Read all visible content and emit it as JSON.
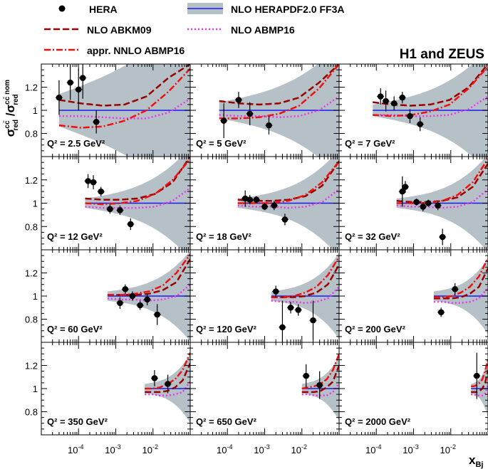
{
  "chart_data": {
    "type": "scatter",
    "collaboration": "H1 and ZEUS",
    "ylabel": "σ_red^cc̄ / σ_red^cc̄ nom",
    "xlabel": "x_Bj",
    "xscale": "log",
    "xlim": [
      1e-05,
      0.1
    ],
    "ylim": [
      0.6,
      1.4
    ],
    "yticks": [
      0.8,
      1.0,
      1.2
    ],
    "ytick_labels": [
      "0.8",
      "1",
      "1.2"
    ],
    "xticks": [
      0.0001,
      0.001,
      0.01
    ],
    "xtick_labels": [
      [
        "10",
        "-4"
      ],
      [
        "10",
        "-3"
      ],
      [
        "10",
        "-2"
      ]
    ],
    "legend": [
      {
        "key": "hera",
        "label": "HERA"
      },
      {
        "key": "herapdf",
        "label": "NLO HERAPDF2.0 FF3A"
      },
      {
        "key": "abkm09",
        "label": "NLO ABKM09"
      },
      {
        "key": "abmp16",
        "label": "NLO ABMP16"
      },
      {
        "key": "nnlo",
        "label": "appr. NNLO ABMP16"
      }
    ],
    "colors": {
      "hera": "#000000",
      "band": "#b6c1c7",
      "herapdf": "#1a1aee",
      "abkm09": "#990000",
      "abmp16": "#ee33ee",
      "nnlo": "#ee1111"
    },
    "panels": [
      {
        "q2_label": "Q² = 2.5 GeV²",
        "q2": "2.5",
        "xmin": 3e-05,
        "band": [
          0.14,
          0.42,
          0.28
        ],
        "abkm09": [
          1.09,
          1.06,
          1.04,
          1.05,
          1.12,
          1.28,
          1.4
        ],
        "abmp16": [
          0.95,
          0.95,
          0.94,
          0.93,
          0.93,
          0.98,
          1.1
        ],
        "nnlo": [
          0.87,
          0.85,
          0.86,
          0.91,
          1.0,
          1.16,
          1.36
        ],
        "points": [
          {
            "x": 3e-05,
            "y": 1.11,
            "e": 0.15
          },
          {
            "x": 6e-05,
            "y": 1.24,
            "e": 0.15
          },
          {
            "x": 0.0001,
            "y": 1.18,
            "e": 0.18
          },
          {
            "x": 0.00013,
            "y": 1.28,
            "e": 0.18
          },
          {
            "x": 0.0003,
            "y": 0.9,
            "e": 0.1
          }
        ]
      },
      {
        "q2_label": "Q² = 5 GeV²",
        "q2": "5",
        "xmin": 6e-05,
        "band": [
          0.07,
          0.2,
          0.3
        ],
        "abkm09": [
          1.08,
          1.06,
          1.05,
          1.06,
          1.11,
          1.24,
          1.4
        ],
        "abmp16": [
          0.96,
          0.95,
          0.95,
          0.94,
          0.95,
          1.0,
          1.12
        ],
        "nnlo": [
          0.93,
          0.93,
          0.94,
          0.97,
          1.04,
          1.19,
          1.4
        ],
        "points": [
          {
            "x": 8e-05,
            "y": 0.91,
            "e": 0.15
          },
          {
            "x": 0.0002,
            "y": 1.09,
            "e": 0.07
          },
          {
            "x": 0.0004,
            "y": 0.97,
            "e": 0.1
          },
          {
            "x": 0.0013,
            "y": 0.87,
            "e": 0.08
          }
        ]
      },
      {
        "q2_label": "Q² = 7 GeV²",
        "q2": "7",
        "xmin": 8e-05,
        "band": [
          0.05,
          0.18,
          0.3
        ],
        "abkm09": [
          1.07,
          1.05,
          1.04,
          1.05,
          1.09,
          1.2,
          1.4
        ],
        "abmp16": [
          0.96,
          0.96,
          0.95,
          0.95,
          0.96,
          1.01,
          1.12
        ],
        "nnlo": [
          0.96,
          0.95,
          0.96,
          0.99,
          1.05,
          1.19,
          1.38
        ],
        "points": [
          {
            "x": 0.00013,
            "y": 1.12,
            "e": 0.07
          },
          {
            "x": 0.00018,
            "y": 1.08,
            "e": 0.09
          },
          {
            "x": 0.0003,
            "y": 1.06,
            "e": 0.06
          },
          {
            "x": 0.0005,
            "y": 1.11,
            "e": 0.05
          },
          {
            "x": 0.0008,
            "y": 0.95,
            "e": 0.06
          },
          {
            "x": 0.0015,
            "y": 0.88,
            "e": 0.06
          }
        ]
      },
      {
        "q2_label": "Q² = 12 GeV²",
        "q2": "12",
        "xmin": 0.00015,
        "band": [
          0.04,
          0.14,
          0.3
        ],
        "abkm09": [
          1.04,
          1.03,
          1.03,
          1.04,
          1.08,
          1.18,
          1.4
        ],
        "abmp16": [
          0.97,
          0.96,
          0.96,
          0.96,
          0.97,
          1.02,
          1.13
        ],
        "nnlo": [
          1.0,
          0.99,
          1.0,
          1.02,
          1.08,
          1.2,
          1.38
        ],
        "points": [
          {
            "x": 0.00018,
            "y": 1.19,
            "e": 0.06
          },
          {
            "x": 0.00025,
            "y": 1.18,
            "e": 0.06
          },
          {
            "x": 0.0004,
            "y": 1.1,
            "e": 0.04
          },
          {
            "x": 0.0007,
            "y": 0.95,
            "e": 0.04
          },
          {
            "x": 0.0013,
            "y": 0.94,
            "e": 0.04
          },
          {
            "x": 0.0025,
            "y": 0.82,
            "e": 0.05
          }
        ]
      },
      {
        "q2_label": "Q² = 18 GeV²",
        "q2": "18",
        "xmin": 0.00019,
        "band": [
          0.04,
          0.12,
          0.3
        ],
        "abkm09": [
          1.03,
          1.02,
          1.02,
          1.03,
          1.06,
          1.15,
          1.36
        ],
        "abmp16": [
          0.98,
          0.97,
          0.97,
          0.96,
          0.97,
          1.01,
          1.12
        ],
        "nnlo": [
          1.0,
          1.0,
          1.0,
          1.02,
          1.07,
          1.18,
          1.36
        ],
        "points": [
          {
            "x": 0.0003,
            "y": 1.04,
            "e": 0.07
          },
          {
            "x": 0.0004,
            "y": 1.03,
            "e": 0.04
          },
          {
            "x": 0.0006,
            "y": 1.03,
            "e": 0.03
          },
          {
            "x": 0.001,
            "y": 0.97,
            "e": 0.03
          },
          {
            "x": 0.0018,
            "y": 0.98,
            "e": 0.04
          },
          {
            "x": 0.0035,
            "y": 0.86,
            "e": 0.05
          }
        ]
      },
      {
        "q2_label": "Q² = 32 GeV²",
        "q2": "32",
        "xmin": 0.00035,
        "band": [
          0.04,
          0.1,
          0.28
        ],
        "abkm09": [
          1.02,
          1.01,
          1.01,
          1.02,
          1.05,
          1.14,
          1.34
        ],
        "abmp16": [
          0.98,
          0.97,
          0.97,
          0.96,
          0.97,
          1.01,
          1.12
        ],
        "nnlo": [
          1.0,
          1.0,
          1.0,
          1.02,
          1.07,
          1.18,
          1.38
        ],
        "points": [
          {
            "x": 0.0005,
            "y": 1.1,
            "e": 0.13
          },
          {
            "x": 0.0006,
            "y": 1.14,
            "e": 0.05
          },
          {
            "x": 0.0012,
            "y": 1.01,
            "e": 0.03
          },
          {
            "x": 0.0018,
            "y": 0.97,
            "e": 0.04
          },
          {
            "x": 0.0025,
            "y": 1.0,
            "e": 0.03
          },
          {
            "x": 0.0045,
            "y": 0.98,
            "e": 0.04
          },
          {
            "x": 0.006,
            "y": 0.71,
            "e": 0.07
          }
        ]
      },
      {
        "q2_label": "Q² = 60 GeV²",
        "q2": "60",
        "xmin": 0.0006,
        "band": [
          0.04,
          0.09,
          0.26
        ],
        "abkm09": [
          1.01,
          1.01,
          1.01,
          1.02,
          1.05,
          1.12,
          1.32
        ],
        "abmp16": [
          0.98,
          0.97,
          0.97,
          0.96,
          0.97,
          1.0,
          1.1
        ],
        "nnlo": [
          1.01,
          1.01,
          1.02,
          1.04,
          1.09,
          1.2,
          1.36
        ],
        "points": [
          {
            "x": 0.0013,
            "y": 0.94,
            "e": 0.05
          },
          {
            "x": 0.0018,
            "y": 1.06,
            "e": 0.04
          },
          {
            "x": 0.0028,
            "y": 1.0,
            "e": 0.04
          },
          {
            "x": 0.0045,
            "y": 0.92,
            "e": 0.04
          },
          {
            "x": 0.007,
            "y": 0.97,
            "e": 0.05
          },
          {
            "x": 0.013,
            "y": 0.84,
            "e": 0.09
          }
        ]
      },
      {
        "q2_label": "Q² = 120 GeV²",
        "q2": "120",
        "xmin": 0.0015,
        "band": [
          0.04,
          0.08,
          0.25
        ],
        "abkm09": [
          0.99,
          0.99,
          0.99,
          1.0,
          1.03,
          1.1,
          1.27
        ],
        "abmp16": [
          0.96,
          0.95,
          0.95,
          0.94,
          0.95,
          0.98,
          1.08
        ],
        "nnlo": [
          0.99,
          0.99,
          1.0,
          1.03,
          1.08,
          1.18,
          1.34
        ],
        "points": [
          {
            "x": 0.002,
            "y": 1.04,
            "e": 0.05
          },
          {
            "x": 0.003,
            "y": 0.73,
            "e": 0.23
          },
          {
            "x": 0.005,
            "y": 0.9,
            "e": 0.05
          },
          {
            "x": 0.008,
            "y": 0.88,
            "e": 0.05
          },
          {
            "x": 0.02,
            "y": 0.79,
            "e": 0.17
          }
        ]
      },
      {
        "q2_label": "Q² = 200 GeV²",
        "q2": "200",
        "xmin": 0.0035,
        "band": [
          0.04,
          0.07,
          0.22
        ],
        "abkm09": [
          0.98,
          0.98,
          0.98,
          0.99,
          1.02,
          1.08,
          1.24
        ],
        "abmp16": [
          0.95,
          0.95,
          0.94,
          0.94,
          0.95,
          0.98,
          1.07
        ],
        "nnlo": [
          0.99,
          0.99,
          1.0,
          1.03,
          1.08,
          1.17,
          1.33
        ],
        "points": [
          {
            "x": 0.0055,
            "y": 0.86,
            "e": 0.04
          },
          {
            "x": 0.013,
            "y": 1.06,
            "e": 0.05
          }
        ]
      },
      {
        "q2_label": "Q² = 350 GeV²",
        "q2": "350",
        "xmin": 0.006,
        "band": [
          0.04,
          0.06,
          0.2
        ],
        "abkm09": [
          0.97,
          0.97,
          0.97,
          0.98,
          1.01,
          1.07,
          1.22
        ],
        "abmp16": [
          0.95,
          0.95,
          0.94,
          0.94,
          0.95,
          0.97,
          1.06
        ],
        "nnlo": [
          1.0,
          1.0,
          1.01,
          1.04,
          1.08,
          1.16,
          1.31
        ],
        "points": [
          {
            "x": 0.011,
            "y": 1.09,
            "e": 0.07
          },
          {
            "x": 0.025,
            "y": 1.04,
            "e": 0.08
          }
        ]
      },
      {
        "q2_label": "Q² = 650 GeV²",
        "q2": "650",
        "xmin": 0.01,
        "band": [
          0.04,
          0.06,
          0.18
        ],
        "abkm09": [
          0.97,
          0.97,
          0.97,
          0.98,
          1.01,
          1.06,
          1.2
        ],
        "abmp16": [
          0.95,
          0.95,
          0.94,
          0.94,
          0.94,
          0.97,
          1.05
        ],
        "nnlo": [
          1.0,
          1.01,
          1.02,
          1.04,
          1.08,
          1.16,
          1.3
        ],
        "points": [
          {
            "x": 0.013,
            "y": 1.11,
            "e": 0.1
          },
          {
            "x": 0.03,
            "y": 1.03,
            "e": 0.12
          }
        ]
      },
      {
        "q2_label": "Q² = 2000 GeV²",
        "q2": "2000",
        "xmin": 0.035,
        "band": [
          0.04,
          0.05,
          0.16
        ],
        "abkm09": [
          0.97,
          0.97,
          0.97,
          0.98,
          1.0,
          1.05,
          1.16
        ],
        "abmp16": [
          0.95,
          0.95,
          0.94,
          0.94,
          0.94,
          0.96,
          1.03
        ],
        "nnlo": [
          1.02,
          1.02,
          1.03,
          1.05,
          1.08,
          1.15,
          1.26
        ],
        "points": [
          {
            "x": 0.05,
            "y": 1.11,
            "e": 0.2
          }
        ]
      }
    ]
  }
}
